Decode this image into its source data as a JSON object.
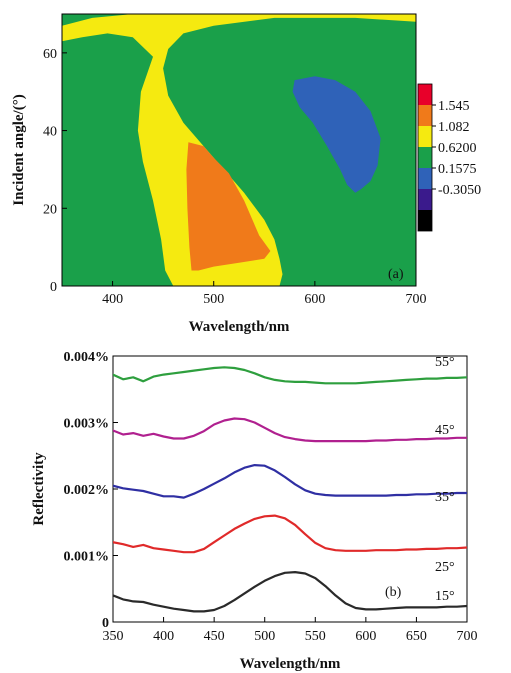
{
  "chart_data": [
    {
      "type": "heatmap",
      "panel_label": "(a)",
      "xlabel": "Wavelength/nm",
      "ylabel": "Incident angle/(°)",
      "xlim": [
        350,
        700
      ],
      "ylim": [
        0,
        70
      ],
      "x_ticks": [
        "400",
        "500",
        "600",
        "700"
      ],
      "y_ticks": [
        "0",
        "20",
        "40",
        "60"
      ],
      "colorbar": {
        "levels": [
          "1.545",
          "1.082",
          "0.6200",
          "0.1575",
          "-0.3050"
        ],
        "colors": [
          "#e8002a",
          "#f07a1a",
          "#f5ea10",
          "#1aa04a",
          "#2f62b8",
          "#3a1a8c",
          "#000000"
        ]
      },
      "background_color": "#1aa04a",
      "regions": [
        {
          "name": "yellow band",
          "color": "#f5ea10",
          "outline": [
            [
              350,
              67
            ],
            [
              380,
              69
            ],
            [
              420,
              70
            ],
            [
              700,
              70
            ],
            [
              700,
              68
            ],
            [
              640,
              69
            ],
            [
              560,
              69
            ],
            [
              500,
              67
            ],
            [
              470,
              65
            ],
            [
              455,
              61
            ],
            [
              450,
              56
            ],
            [
              455,
              49
            ],
            [
              470,
              42
            ],
            [
              490,
              36
            ],
            [
              510,
              30
            ],
            [
              530,
              24
            ],
            [
              550,
              17
            ],
            [
              560,
              12
            ],
            [
              565,
              7
            ],
            [
              568,
              3
            ],
            [
              565,
              0
            ],
            [
              460,
              0
            ],
            [
              452,
              4
            ],
            [
              448,
              12
            ],
            [
              440,
              22
            ],
            [
              430,
              32
            ],
            [
              425,
              40
            ],
            [
              428,
              50
            ],
            [
              440,
              59
            ],
            [
              420,
              64
            ],
            [
              395,
              65
            ],
            [
              370,
              64
            ],
            [
              350,
              63
            ]
          ]
        },
        {
          "name": "orange region",
          "color": "#f07a1a",
          "outline": [
            [
              475,
              37
            ],
            [
              490,
              36
            ],
            [
              500,
              33
            ],
            [
              515,
              29
            ],
            [
              530,
              22
            ],
            [
              545,
              13
            ],
            [
              556,
              9
            ],
            [
              550,
              7
            ],
            [
              525,
              6
            ],
            [
              500,
              5
            ],
            [
              485,
              4
            ],
            [
              478,
              4
            ],
            [
              476,
              10
            ],
            [
              474,
              20
            ],
            [
              473,
              30
            ]
          ]
        },
        {
          "name": "blue ellipse",
          "color": "#2f62b8",
          "outline": [
            [
              580,
              53
            ],
            [
              600,
              54
            ],
            [
              620,
              53
            ],
            [
              640,
              50
            ],
            [
              655,
              45
            ],
            [
              665,
              38
            ],
            [
              662,
              31
            ],
            [
              655,
              27
            ],
            [
              646,
              25
            ],
            [
              640,
              24
            ],
            [
              632,
              26
            ],
            [
              625,
              30
            ],
            [
              612,
              36
            ],
            [
              598,
              42
            ],
            [
              585,
              46
            ],
            [
              578,
              50
            ]
          ]
        }
      ]
    },
    {
      "type": "line",
      "panel_label": "(b)",
      "xlabel": "Wavelength/nm",
      "ylabel": "Reflectivity",
      "xlim": [
        350,
        700
      ],
      "ylim": [
        0,
        0.004
      ],
      "x_ticks": [
        "350",
        "400",
        "450",
        "500",
        "550",
        "600",
        "650",
        "700"
      ],
      "y_ticks": [
        "0",
        "0.001%",
        "0.002%",
        "0.003%",
        "0.004%"
      ],
      "y_tick_values": [
        0,
        0.001,
        0.002,
        0.003,
        0.004
      ],
      "x": [
        350,
        360,
        370,
        380,
        390,
        400,
        410,
        420,
        430,
        440,
        450,
        460,
        470,
        480,
        490,
        500,
        510,
        520,
        530,
        540,
        550,
        560,
        570,
        580,
        590,
        600,
        610,
        620,
        630,
        640,
        650,
        660,
        670,
        680,
        690,
        700
      ],
      "series": [
        {
          "name": "55°",
          "color": "#2e9f3e",
          "values": [
            0.00372,
            0.00365,
            0.00368,
            0.00362,
            0.00369,
            0.00372,
            0.00374,
            0.00376,
            0.00378,
            0.0038,
            0.00382,
            0.00383,
            0.00382,
            0.00379,
            0.00374,
            0.00368,
            0.00364,
            0.00362,
            0.00361,
            0.00361,
            0.0036,
            0.00359,
            0.00359,
            0.00359,
            0.00359,
            0.0036,
            0.00361,
            0.00362,
            0.00363,
            0.00364,
            0.00365,
            0.00366,
            0.00366,
            0.00367,
            0.00367,
            0.00368
          ]
        },
        {
          "name": "45°",
          "color": "#b0208f",
          "values": [
            0.00288,
            0.00282,
            0.00284,
            0.0028,
            0.00283,
            0.00279,
            0.00276,
            0.00276,
            0.0028,
            0.00287,
            0.00297,
            0.00303,
            0.00306,
            0.00305,
            0.003,
            0.00292,
            0.00284,
            0.00278,
            0.00275,
            0.00273,
            0.00272,
            0.00272,
            0.00272,
            0.00272,
            0.00272,
            0.00272,
            0.00273,
            0.00273,
            0.00274,
            0.00274,
            0.00275,
            0.00275,
            0.00276,
            0.00276,
            0.00277,
            0.00277
          ]
        },
        {
          "name": "35°",
          "color": "#2f2fa3",
          "values": [
            0.00205,
            0.00201,
            0.00199,
            0.00197,
            0.00193,
            0.00189,
            0.00189,
            0.00187,
            0.00193,
            0.002,
            0.00208,
            0.00216,
            0.00225,
            0.00232,
            0.00236,
            0.00235,
            0.00228,
            0.00218,
            0.00207,
            0.00198,
            0.00193,
            0.00191,
            0.0019,
            0.0019,
            0.0019,
            0.0019,
            0.0019,
            0.0019,
            0.00191,
            0.00191,
            0.00192,
            0.00192,
            0.00193,
            0.00193,
            0.00194,
            0.00194
          ]
        },
        {
          "name": "25°",
          "color": "#e02a2a",
          "values": [
            0.0012,
            0.00117,
            0.00113,
            0.00116,
            0.00111,
            0.00109,
            0.00107,
            0.00105,
            0.00105,
            0.0011,
            0.0012,
            0.0013,
            0.0014,
            0.00148,
            0.00155,
            0.00159,
            0.0016,
            0.00156,
            0.00146,
            0.00132,
            0.00119,
            0.00111,
            0.00108,
            0.00107,
            0.00107,
            0.00107,
            0.00108,
            0.00108,
            0.00108,
            0.00109,
            0.00109,
            0.0011,
            0.0011,
            0.00111,
            0.00111,
            0.00112
          ]
        },
        {
          "name": "15°",
          "color": "#2a2a2a",
          "values": [
            0.0004,
            0.00034,
            0.00031,
            0.0003,
            0.00026,
            0.00023,
            0.0002,
            0.00018,
            0.00016,
            0.00016,
            0.00018,
            0.00024,
            0.00033,
            0.00043,
            0.00053,
            0.00062,
            0.00069,
            0.00074,
            0.00075,
            0.00073,
            0.00066,
            0.00054,
            0.0004,
            0.00028,
            0.00021,
            0.00019,
            0.00019,
            0.0002,
            0.00021,
            0.00022,
            0.00022,
            0.00022,
            0.00022,
            0.00023,
            0.00023,
            0.00024
          ]
        }
      ]
    }
  ]
}
